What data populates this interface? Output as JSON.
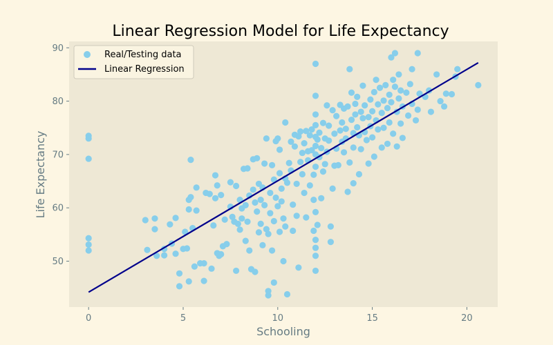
{
  "chart_data": {
    "type": "scatter",
    "title": "Linear Regression Model for Life Expectancy",
    "xlabel": "Schooling",
    "ylabel": "Life Expectancy",
    "xlim": [
      -1.03,
      21.63
    ],
    "ylim": [
      41.4,
      91.2
    ],
    "xticks": [
      0,
      5,
      10,
      15,
      20
    ],
    "yticks": [
      50,
      60,
      70,
      80,
      90
    ],
    "grid": false,
    "legend": {
      "position": "top-left"
    },
    "series": [
      {
        "name": "Real/Testing data",
        "kind": "scatter",
        "color": "#87ceeb",
        "points": [
          [
            0,
            73.5
          ],
          [
            0,
            73.0
          ],
          [
            0,
            69.2
          ],
          [
            0,
            54.3
          ],
          [
            0,
            53.1
          ],
          [
            0,
            52.0
          ],
          [
            3.0,
            57.7
          ],
          [
            3.1,
            52.1
          ],
          [
            3.5,
            58.0
          ],
          [
            3.5,
            56.0
          ],
          [
            3.6,
            51.0
          ],
          [
            4.0,
            52.3
          ],
          [
            4.0,
            51.1
          ],
          [
            4.3,
            56.9
          ],
          [
            4.4,
            53.3
          ],
          [
            4.6,
            58.1
          ],
          [
            4.6,
            51.4
          ],
          [
            4.8,
            47.7
          ],
          [
            4.8,
            45.3
          ],
          [
            5.0,
            52.3
          ],
          [
            5.1,
            55.5
          ],
          [
            5.2,
            52.4
          ],
          [
            5.3,
            46.2
          ],
          [
            5.3,
            61.5
          ],
          [
            5.3,
            59.7
          ],
          [
            5.4,
            69.0
          ],
          [
            5.4,
            62.0
          ],
          [
            5.5,
            56.2
          ],
          [
            5.6,
            49.0
          ],
          [
            5.7,
            59.5
          ],
          [
            5.7,
            63.8
          ],
          [
            5.9,
            49.6
          ],
          [
            6.1,
            49.6
          ],
          [
            6.1,
            46.3
          ],
          [
            6.2,
            62.8
          ],
          [
            6.4,
            62.6
          ],
          [
            6.5,
            48.6
          ],
          [
            6.6,
            56.7
          ],
          [
            6.7,
            66.1
          ],
          [
            6.7,
            61.8
          ],
          [
            6.8,
            64.2
          ],
          [
            6.8,
            51.5
          ],
          [
            6.9,
            51.0
          ],
          [
            7.0,
            51.3
          ],
          [
            7.0,
            62.4
          ],
          [
            7.1,
            52.8
          ],
          [
            7.2,
            57.8
          ],
          [
            7.3,
            53.2
          ],
          [
            7.5,
            60.2
          ],
          [
            7.5,
            64.8
          ],
          [
            7.6,
            58.3
          ],
          [
            7.7,
            57.4
          ],
          [
            7.8,
            64.1
          ],
          [
            7.8,
            48.2
          ],
          [
            7.9,
            57.0
          ],
          [
            8.0,
            55.9
          ],
          [
            8.0,
            61.5
          ],
          [
            8.1,
            59.9
          ],
          [
            8.1,
            58.0
          ],
          [
            8.2,
            67.3
          ],
          [
            8.3,
            53.8
          ],
          [
            8.3,
            60.5
          ],
          [
            8.4,
            57.4
          ],
          [
            8.4,
            67.4
          ],
          [
            8.5,
            52.0
          ],
          [
            8.5,
            62.3
          ],
          [
            8.6,
            48.5
          ],
          [
            8.7,
            69.1
          ],
          [
            8.7,
            63.4
          ],
          [
            8.8,
            48.0
          ],
          [
            8.8,
            61.0
          ],
          [
            8.9,
            69.3
          ],
          [
            8.9,
            59.3
          ],
          [
            9.0,
            55.4
          ],
          [
            9.0,
            64.5
          ],
          [
            9.1,
            61.5
          ],
          [
            9.1,
            57.0
          ],
          [
            9.2,
            63.8
          ],
          [
            9.2,
            53.0
          ],
          [
            9.3,
            60.5
          ],
          [
            9.3,
            68.3
          ],
          [
            9.4,
            56.0
          ],
          [
            9.4,
            73.0
          ],
          [
            9.5,
            44.4
          ],
          [
            9.5,
            43.6
          ],
          [
            9.5,
            55.1
          ],
          [
            9.6,
            62.8
          ],
          [
            9.6,
            59.0
          ],
          [
            9.7,
            52.0
          ],
          [
            9.7,
            68.0
          ],
          [
            9.8,
            46.0
          ],
          [
            9.8,
            57.5
          ],
          [
            9.8,
            65.3
          ],
          [
            9.9,
            61.9
          ],
          [
            9.9,
            72.5
          ],
          [
            10.0,
            60.3
          ],
          [
            10.0,
            73.0
          ],
          [
            10.1,
            66.5
          ],
          [
            10.1,
            70.9
          ],
          [
            10.1,
            55.5
          ],
          [
            10.2,
            63.6
          ],
          [
            10.2,
            61.2
          ],
          [
            10.3,
            58.0
          ],
          [
            10.3,
            50.0
          ],
          [
            10.4,
            76.0
          ],
          [
            10.4,
            65.5
          ],
          [
            10.4,
            56.5
          ],
          [
            10.5,
            43.8
          ],
          [
            10.5,
            64.7
          ],
          [
            10.6,
            68.4
          ],
          [
            10.7,
            72.4
          ],
          [
            10.7,
            67.0
          ],
          [
            10.8,
            60.6
          ],
          [
            10.8,
            55.7
          ],
          [
            10.9,
            73.7
          ],
          [
            10.9,
            71.5
          ],
          [
            11.0,
            64.5
          ],
          [
            11.0,
            58.5
          ],
          [
            11.1,
            73.4
          ],
          [
            11.1,
            48.8
          ],
          [
            11.2,
            68.6
          ],
          [
            11.2,
            74.3
          ],
          [
            11.3,
            70.3
          ],
          [
            11.3,
            66.3
          ],
          [
            11.4,
            72.1
          ],
          [
            11.4,
            62.8
          ],
          [
            11.5,
            74.4
          ],
          [
            11.5,
            58.2
          ],
          [
            11.6,
            70.6
          ],
          [
            11.6,
            68.9
          ],
          [
            11.7,
            64.2
          ],
          [
            11.7,
            73.6
          ],
          [
            11.8,
            74.7
          ],
          [
            11.8,
            70.8
          ],
          [
            11.9,
            66.2
          ],
          [
            11.9,
            61.5
          ],
          [
            11.9,
            55.7
          ],
          [
            12.0,
            87.0
          ],
          [
            12.0,
            81.0
          ],
          [
            12.0,
            77.5
          ],
          [
            12.0,
            75.5
          ],
          [
            12.0,
            73.3
          ],
          [
            12.0,
            71.6
          ],
          [
            12.0,
            70.0
          ],
          [
            12.0,
            67.7
          ],
          [
            12.0,
            59.2
          ],
          [
            12.0,
            54.0
          ],
          [
            12.0,
            52.5
          ],
          [
            12.0,
            51.0
          ],
          [
            12.0,
            48.2
          ],
          [
            12.1,
            72.8
          ],
          [
            12.1,
            56.8
          ],
          [
            12.2,
            69.5
          ],
          [
            12.2,
            74.1
          ],
          [
            12.3,
            71.2
          ],
          [
            12.3,
            61.8
          ],
          [
            12.4,
            75.9
          ],
          [
            12.4,
            66.8
          ],
          [
            12.5,
            73.0
          ],
          [
            12.5,
            68.2
          ],
          [
            12.6,
            79.2
          ],
          [
            12.6,
            70.5
          ],
          [
            12.7,
            75.4
          ],
          [
            12.7,
            72.6
          ],
          [
            12.8,
            56.5
          ],
          [
            12.8,
            53.6
          ],
          [
            12.9,
            63.6
          ],
          [
            12.9,
            78.3
          ],
          [
            13.0,
            73.9
          ],
          [
            13.0,
            67.9
          ],
          [
            13.1,
            71.1
          ],
          [
            13.1,
            77.2
          ],
          [
            13.2,
            68.0
          ],
          [
            13.3,
            74.5
          ],
          [
            13.3,
            79.3
          ],
          [
            13.4,
            72.4
          ],
          [
            13.4,
            76.0
          ],
          [
            13.5,
            70.4
          ],
          [
            13.5,
            78.6
          ],
          [
            13.6,
            74.8
          ],
          [
            13.6,
            73.0
          ],
          [
            13.7,
            79.0
          ],
          [
            13.7,
            63.0
          ],
          [
            13.8,
            86.0
          ],
          [
            13.8,
            68.5
          ],
          [
            13.9,
            76.5
          ],
          [
            13.9,
            81.6
          ],
          [
            14.0,
            74.0
          ],
          [
            14.0,
            71.3
          ],
          [
            14.0,
            64.6
          ],
          [
            14.1,
            77.5
          ],
          [
            14.1,
            79.5
          ],
          [
            14.2,
            75.1
          ],
          [
            14.2,
            80.8
          ],
          [
            14.3,
            73.6
          ],
          [
            14.3,
            66.3
          ],
          [
            14.4,
            78.0
          ],
          [
            14.4,
            71.0
          ],
          [
            14.5,
            76.8
          ],
          [
            14.5,
            82.9
          ],
          [
            14.6,
            74.2
          ],
          [
            14.6,
            79.2
          ],
          [
            14.7,
            72.7
          ],
          [
            14.8,
            77.0
          ],
          [
            14.8,
            68.3
          ],
          [
            14.9,
            75.3
          ],
          [
            14.9,
            80.3
          ],
          [
            15.0,
            78.1
          ],
          [
            15.0,
            73.2
          ],
          [
            15.1,
            81.7
          ],
          [
            15.1,
            69.6
          ],
          [
            15.2,
            84.0
          ],
          [
            15.2,
            76.4
          ],
          [
            15.3,
            79.4
          ],
          [
            15.3,
            74.7
          ],
          [
            15.4,
            82.5
          ],
          [
            15.5,
            77.8
          ],
          [
            15.5,
            71.3
          ],
          [
            15.6,
            80.1
          ],
          [
            15.6,
            75.0
          ],
          [
            15.7,
            83.0
          ],
          [
            15.8,
            78.7
          ],
          [
            15.8,
            72.0
          ],
          [
            15.9,
            81.2
          ],
          [
            15.9,
            76.0
          ],
          [
            16.0,
            88.2
          ],
          [
            16.0,
            79.8
          ],
          [
            16.1,
            84.0
          ],
          [
            16.1,
            73.9
          ],
          [
            16.2,
            89.0
          ],
          [
            16.2,
            82.7
          ],
          [
            16.3,
            78.0
          ],
          [
            16.3,
            71.5
          ],
          [
            16.4,
            80.5
          ],
          [
            16.4,
            85.0
          ],
          [
            16.5,
            75.8
          ],
          [
            16.5,
            82.0
          ],
          [
            16.6,
            79.0
          ],
          [
            16.6,
            73.1
          ],
          [
            16.8,
            81.6
          ],
          [
            16.9,
            77.3
          ],
          [
            17.0,
            83.2
          ],
          [
            17.1,
            79.5
          ],
          [
            17.1,
            86.0
          ],
          [
            17.3,
            76.4
          ],
          [
            17.4,
            89.0
          ],
          [
            17.4,
            78.4
          ],
          [
            17.5,
            81.4
          ],
          [
            17.8,
            80.8
          ],
          [
            18.0,
            82.0
          ],
          [
            18.1,
            78.0
          ],
          [
            18.4,
            85.0
          ],
          [
            18.6,
            80.0
          ],
          [
            18.8,
            79.0
          ],
          [
            18.9,
            81.4
          ],
          [
            19.2,
            81.3
          ],
          [
            19.4,
            84.6
          ],
          [
            19.5,
            86.0
          ],
          [
            20.6,
            83.0
          ]
        ]
      },
      {
        "name": "Linear Regression",
        "kind": "line",
        "color": "#00008b",
        "points": [
          [
            0,
            44.2
          ],
          [
            20.6,
            87.2
          ]
        ]
      }
    ]
  },
  "colors": {
    "figure_background": "#fdf6e3",
    "axes_background": "#eee8d5",
    "tick_color": "#657b83",
    "scatter": "#87ceeb",
    "line": "#00008b"
  }
}
